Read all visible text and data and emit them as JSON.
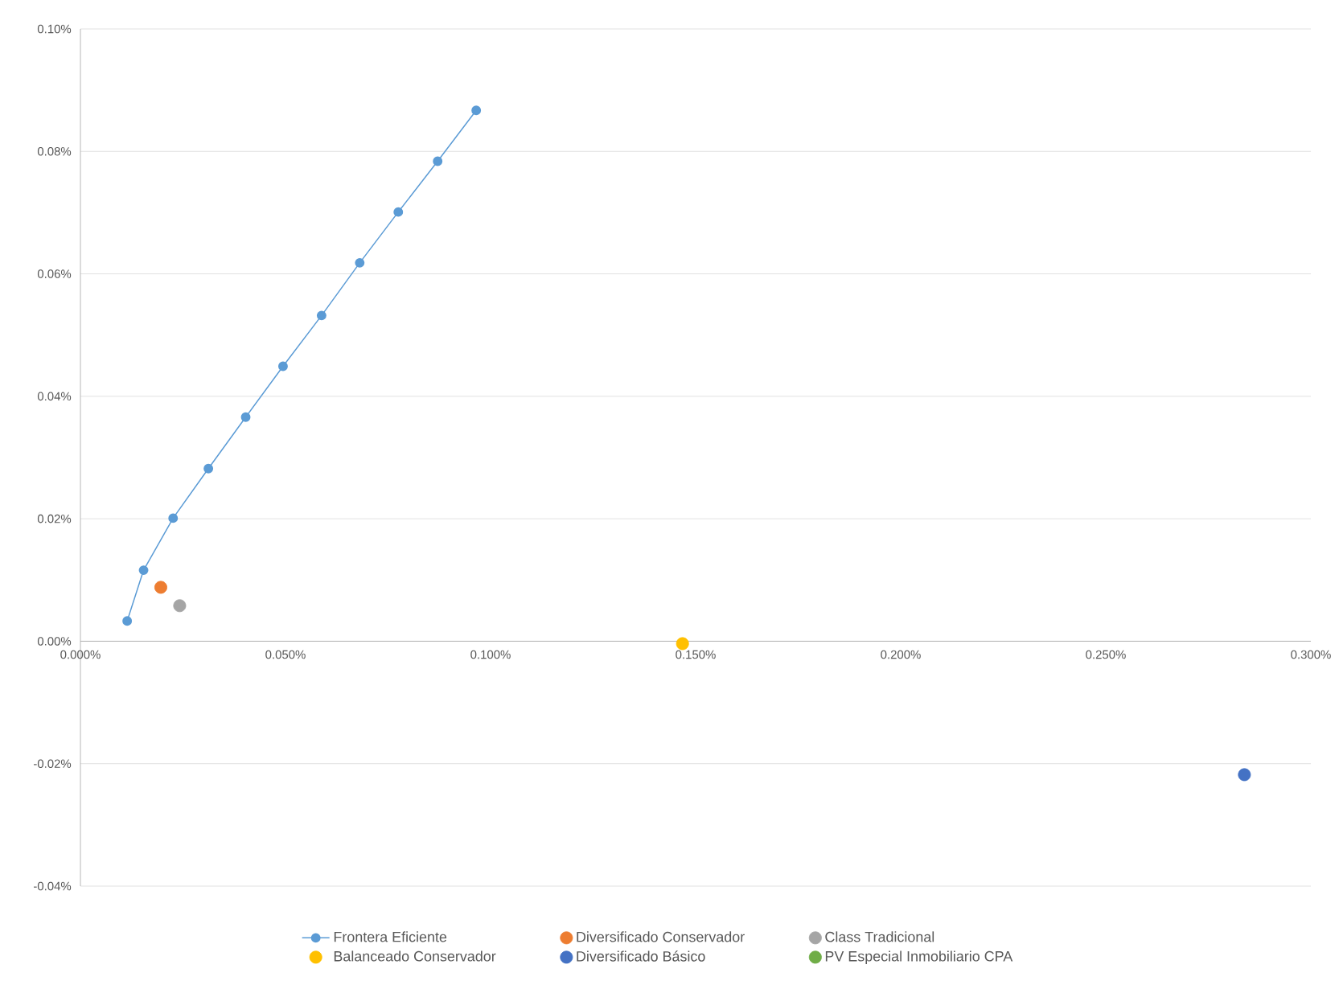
{
  "chart_data": {
    "type": "scatter",
    "grid": "y",
    "legend": "bottom",
    "marker": "circle",
    "xlim": [
      0,
      0.3
    ],
    "ylim": [
      -0.04,
      0.1
    ],
    "xticks": [
      {
        "value": 0,
        "label": "0.000%"
      },
      {
        "value": 0.05,
        "label": "0.050%"
      },
      {
        "value": 0.1,
        "label": "0.100%"
      },
      {
        "value": 0.15,
        "label": "0.150%"
      },
      {
        "value": 0.2,
        "label": "0.200%"
      },
      {
        "value": 0.25,
        "label": "0.250%"
      },
      {
        "value": 0.3,
        "label": "0.300%"
      }
    ],
    "yticks": [
      {
        "value": -0.04,
        "label": "-0.04%"
      },
      {
        "value": -0.02,
        "label": "-0.02%"
      },
      {
        "value": 0,
        "label": "0.00%"
      },
      {
        "value": 0.02,
        "label": "0.02%"
      },
      {
        "value": 0.04,
        "label": "0.04%"
      },
      {
        "value": 0.06,
        "label": "0.06%"
      },
      {
        "value": 0.08,
        "label": "0.08%"
      },
      {
        "value": 0.1,
        "label": "0.10%"
      }
    ],
    "series": [
      {
        "name": "Frontera Eficiente",
        "type": "line",
        "line_style": "solid",
        "color": "#5b9bd5",
        "x": [
          0.0114,
          0.0154,
          0.0226,
          0.0312,
          0.0403,
          0.0494,
          0.0588,
          0.0681,
          0.0775,
          0.0871,
          0.0965
        ],
        "values": [
          0.0033,
          0.0116,
          0.0201,
          0.0282,
          0.0366,
          0.0449,
          0.0532,
          0.0618,
          0.0701,
          0.0784,
          0.0867
        ]
      },
      {
        "name": "Diversificado Conservador",
        "type": "scatter",
        "color": "#ed7d31",
        "x": [
          0.0196
        ],
        "values": [
          0.0088
        ]
      },
      {
        "name": "Class Tradicional",
        "type": "scatter",
        "color": "#a5a5a5",
        "x": [
          0.0242
        ],
        "values": [
          0.0058
        ]
      },
      {
        "name": "Balanceado Conservador",
        "type": "scatter",
        "color": "#ffc000",
        "x": [
          0.1468
        ],
        "values": [
          -0.0004
        ]
      },
      {
        "name": "Diversificado Básico",
        "type": "scatter",
        "color": "#4472c4",
        "x": [
          0.2838
        ],
        "values": [
          -0.0218
        ]
      },
      {
        "name": "PV Especial Inmobiliario CPA",
        "type": "scatter",
        "color": "#70ad47"
      }
    ]
  }
}
